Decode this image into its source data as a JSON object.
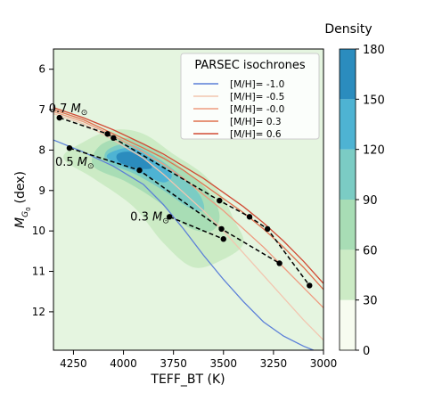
{
  "chart_data": {
    "type": "line",
    "xlabel": "TEFF_BT (K)",
    "ylabel": "M_G0 (dex)",
    "xlim": [
      4350,
      3000
    ],
    "ylim": [
      12.95,
      5.5
    ],
    "x_ticks": [
      4250,
      4000,
      3750,
      3500,
      3250,
      3000
    ],
    "y_ticks": [
      6,
      7,
      8,
      9,
      10,
      11,
      12
    ],
    "grid": false,
    "legend": {
      "title": "PARSEC isochrones",
      "placement": "top-right",
      "entries": [
        "[M/H]= -1.0",
        "[M/H]= -0.5",
        "[M/H]= -0.0",
        "[M/H]= 0.3",
        "[M/H]= 0.6"
      ]
    },
    "series": [
      {
        "name": "[M/H]= -1.0",
        "color": "#5b7fd8",
        "x": [
          4350,
          4200,
          4050,
          3900,
          3800,
          3700,
          3600,
          3500,
          3400,
          3300,
          3200,
          3100,
          3050
        ],
        "y": [
          7.75,
          8.05,
          8.4,
          8.85,
          9.35,
          9.95,
          10.6,
          11.2,
          11.75,
          12.25,
          12.6,
          12.85,
          12.95
        ]
      },
      {
        "name": "[M/H]= -0.5",
        "color": "#f2c6b0",
        "x": [
          4350,
          4200,
          4050,
          3900,
          3800,
          3700,
          3600,
          3500,
          3400,
          3300,
          3200,
          3100,
          3000
        ],
        "y": [
          7.1,
          7.35,
          7.75,
          8.2,
          8.6,
          9.05,
          9.5,
          10.0,
          10.55,
          11.1,
          11.65,
          12.2,
          12.7
        ]
      },
      {
        "name": "[M/H]= -0.0",
        "color": "#ee9b80",
        "x": [
          4350,
          4200,
          4050,
          3900,
          3800,
          3700,
          3600,
          3500,
          3400,
          3300,
          3200,
          3100,
          3000
        ],
        "y": [
          7.05,
          7.3,
          7.65,
          8.05,
          8.35,
          8.7,
          9.1,
          9.5,
          9.95,
          10.4,
          10.9,
          11.4,
          11.9
        ]
      },
      {
        "name": "[M/H]= 0.3",
        "color": "#e0704e",
        "x": [
          4350,
          4200,
          4050,
          3900,
          3800,
          3700,
          3600,
          3500,
          3400,
          3300,
          3200,
          3100,
          3000
        ],
        "y": [
          7.0,
          7.25,
          7.6,
          7.95,
          8.2,
          8.5,
          8.85,
          9.2,
          9.55,
          9.95,
          10.4,
          10.9,
          11.45
        ]
      },
      {
        "name": "[M/H]= 0.6",
        "color": "#d14b35",
        "x": [
          4350,
          4200,
          4050,
          3900,
          3800,
          3700,
          3600,
          3500,
          3400,
          3300,
          3200,
          3100,
          3000
        ],
        "y": [
          6.95,
          7.2,
          7.5,
          7.85,
          8.1,
          8.4,
          8.7,
          9.05,
          9.4,
          9.8,
          10.25,
          10.75,
          11.3
        ]
      }
    ],
    "mass_tracks": [
      {
        "label": "0.7 M⊙",
        "x": [
          4320,
          4080,
          4050,
          3520,
          3370,
          3280,
          3070
        ],
        "y": [
          7.2,
          7.6,
          7.7,
          9.25,
          9.65,
          9.95,
          11.35
        ]
      },
      {
        "label": "0.5 M⊙",
        "x": [
          4270,
          3920,
          3510,
          3220
        ],
        "y": [
          7.95,
          8.5,
          9.95,
          10.8
        ]
      },
      {
        "label": "0.3 M⊙",
        "x": [
          3770,
          3500
        ],
        "y": [
          9.65,
          10.2
        ]
      }
    ],
    "density_colorbar": {
      "label": "Density",
      "ticks": [
        0,
        30,
        60,
        90,
        120,
        150,
        180
      ],
      "colors": [
        "#f7fcf0",
        "#e0f3db",
        "#ccebc5",
        "#a8ddb5",
        "#7bccc4",
        "#4eb3d3",
        "#2b8cbe",
        "#0868ac"
      ]
    },
    "density_contours": [
      {
        "level": 30,
        "color": "#ccebc5",
        "points": [
          [
            4200,
            7.8
          ],
          [
            4050,
            7.5
          ],
          [
            3900,
            7.6
          ],
          [
            3750,
            8.1
          ],
          [
            3600,
            8.6
          ],
          [
            3500,
            9.2
          ],
          [
            3450,
            9.7
          ],
          [
            3400,
            10.3
          ],
          [
            3500,
            10.7
          ],
          [
            3650,
            10.9
          ],
          [
            3800,
            10.3
          ],
          [
            3950,
            9.4
          ],
          [
            4150,
            8.7
          ],
          [
            4300,
            8.2
          ]
        ]
      },
      {
        "level": 60,
        "color": "#a8ddb5",
        "points": [
          [
            4120,
            7.9
          ],
          [
            4000,
            7.7
          ],
          [
            3880,
            7.9
          ],
          [
            3720,
            8.4
          ],
          [
            3580,
            9.0
          ],
          [
            3520,
            9.6
          ],
          [
            3560,
            10.0
          ],
          [
            3680,
            9.9
          ],
          [
            3820,
            9.3
          ],
          [
            3980,
            8.8
          ],
          [
            4150,
            8.4
          ]
        ]
      },
      {
        "level": 90,
        "color": "#7bccc4",
        "points": [
          [
            4080,
            8.0
          ],
          [
            3980,
            7.85
          ],
          [
            3860,
            8.1
          ],
          [
            3720,
            8.6
          ],
          [
            3620,
            9.1
          ],
          [
            3600,
            9.5
          ],
          [
            3680,
            9.4
          ],
          [
            3800,
            9.0
          ],
          [
            3940,
            8.6
          ],
          [
            4080,
            8.3
          ]
        ]
      },
      {
        "level": 120,
        "color": "#4eb3d3",
        "points": [
          [
            4060,
            8.05
          ],
          [
            3960,
            7.95
          ],
          [
            3850,
            8.25
          ],
          [
            3760,
            8.6
          ],
          [
            3800,
            8.8
          ],
          [
            3900,
            8.6
          ],
          [
            4000,
            8.4
          ],
          [
            4080,
            8.2
          ]
        ]
      },
      {
        "level": 150,
        "color": "#2b8cbe",
        "points": [
          [
            4030,
            8.1
          ],
          [
            3960,
            8.05
          ],
          [
            3880,
            8.3
          ],
          [
            3860,
            8.45
          ],
          [
            3930,
            8.45
          ],
          [
            4020,
            8.3
          ]
        ]
      }
    ],
    "plot_background": "#e5f5e0"
  }
}
